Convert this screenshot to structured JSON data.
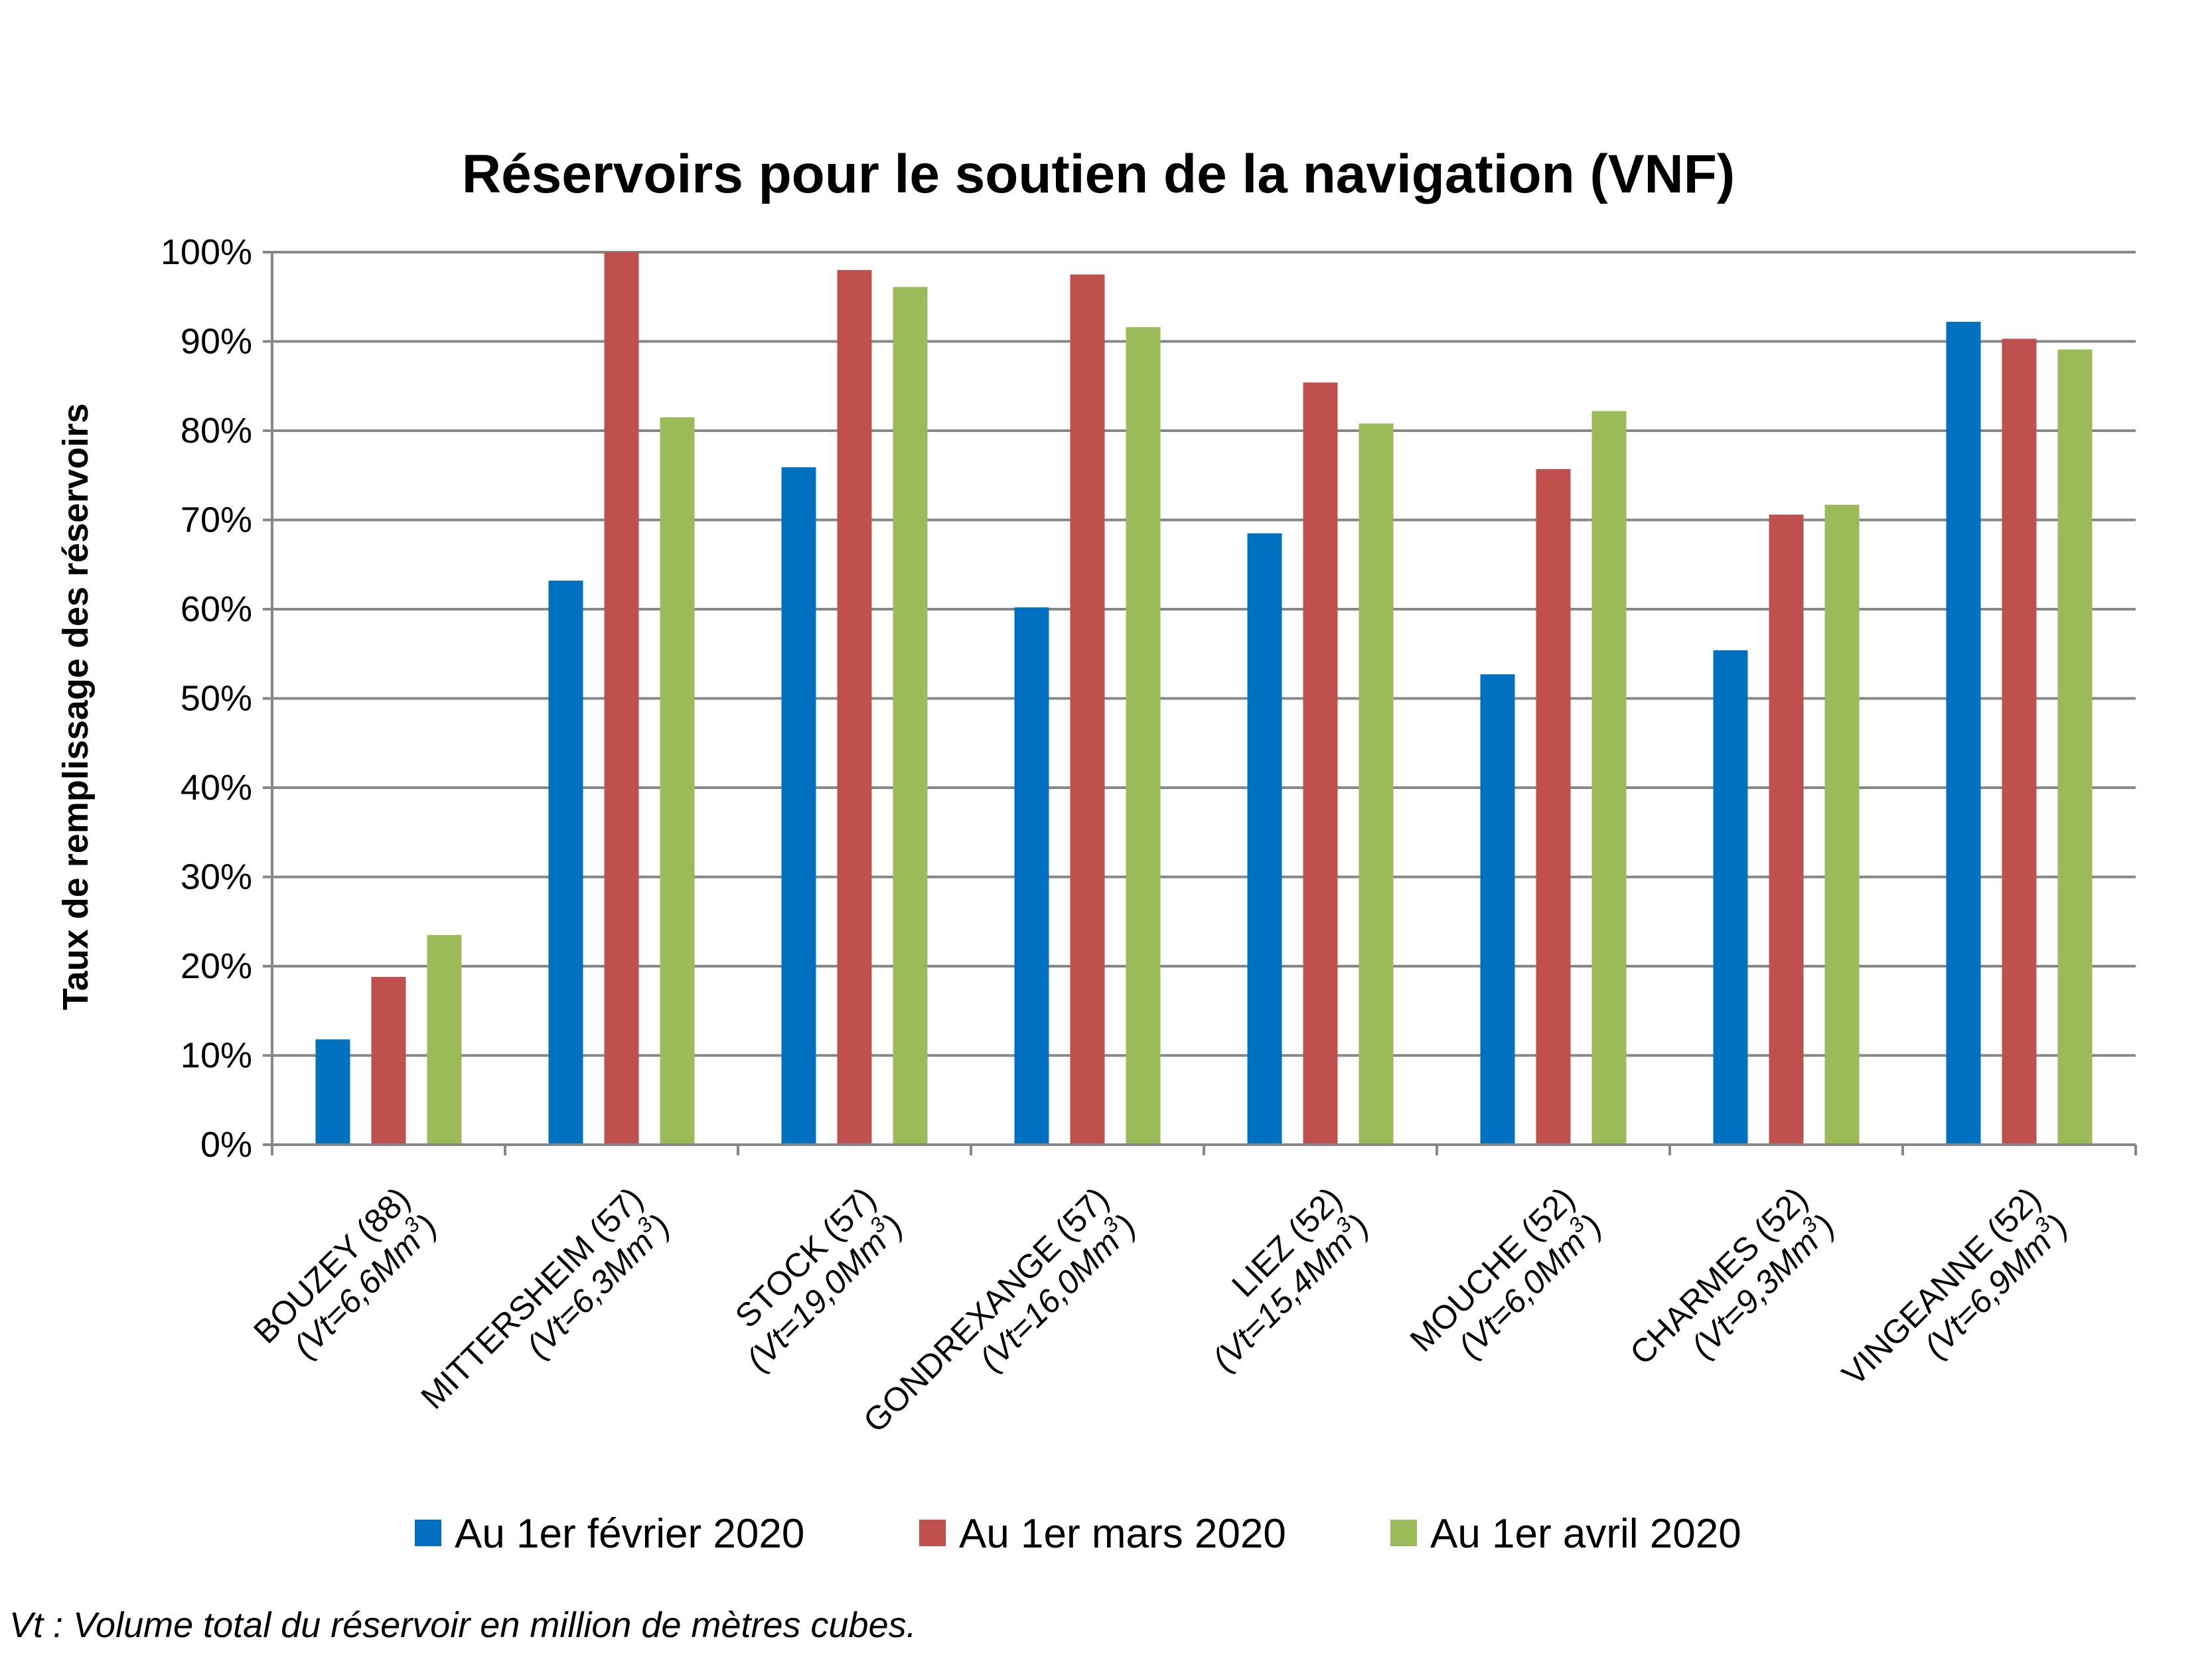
{
  "chart_data": {
    "type": "bar",
    "title": "Réservoirs pour le soutien de la navigation (VNF)",
    "ylabel": "Taux de remplissage des réservoirs",
    "xlabel": "",
    "ylim": [
      0,
      100
    ],
    "yticks": [
      "0%",
      "10%",
      "20%",
      "30%",
      "40%",
      "50%",
      "60%",
      "70%",
      "80%",
      "90%",
      "100%"
    ],
    "grid": true,
    "legend_position": "bottom",
    "categories": [
      {
        "name": "BOUZEY (88)",
        "sub": "(Vt=6,6Mm",
        "sup": "3",
        "close": ")"
      },
      {
        "name": "MITTERSHEIM (57)",
        "sub": "(Vt=6,3Mm",
        "sup": "3",
        "close": ")"
      },
      {
        "name": "STOCK (57)",
        "sub": "(Vt=19,0Mm",
        "sup": "3",
        "close": ")"
      },
      {
        "name": "GONDREXANGE (57)",
        "sub": "(Vt=16,0Mm",
        "sup": "3",
        "close": ")"
      },
      {
        "name": "LIEZ (52)",
        "sub": "(Vt=15,4Mm",
        "sup": "3",
        "close": ")"
      },
      {
        "name": "MOUCHE (52)",
        "sub": "(Vt=6,0Mm",
        "sup": "3",
        "close": ")"
      },
      {
        "name": "CHARMES (52)",
        "sub": "(Vt=9,3Mm",
        "sup": "3",
        "close": ")"
      },
      {
        "name": "VINGEANNE (52)",
        "sub": "(Vt=6,9Mm",
        "sup": "3",
        "close": ")"
      }
    ],
    "series": [
      {
        "name": "Au 1er février 2020",
        "color": "#0070C0",
        "values": [
          11.8,
          63.2,
          75.9,
          60.2,
          68.5,
          52.7,
          55.4,
          92.2
        ]
      },
      {
        "name": "Au 1er mars 2020",
        "color": "#C0504D",
        "values": [
          18.8,
          100,
          98.0,
          97.5,
          85.4,
          75.7,
          70.6,
          90.3
        ]
      },
      {
        "name": "Au 1er avril 2020",
        "color": "#9BBB59",
        "values": [
          23.5,
          81.5,
          96.1,
          91.6,
          80.8,
          82.2,
          71.7,
          89.1
        ]
      }
    ]
  },
  "footnote": "Vt : Volume total du réservoir en million de mètres cubes."
}
